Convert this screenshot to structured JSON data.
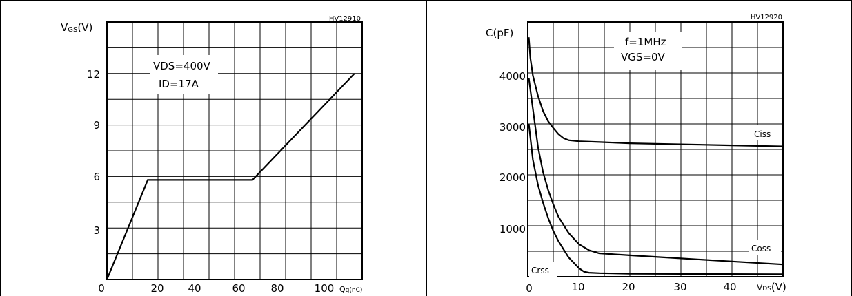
{
  "chart_data": [
    {
      "type": "line",
      "code": "HV12910",
      "ylabel": "VGS(V)",
      "xlabel": "Qg(nC)",
      "xlim": [
        0,
        100
      ],
      "ylim": [
        0,
        15
      ],
      "x_ticks": [
        "0",
        "20",
        "40",
        "60",
        "80",
        "100"
      ],
      "y_ticks": [
        "3",
        "6",
        "9",
        "12"
      ],
      "annotation": [
        "VDS=400V",
        "ID=17A"
      ],
      "series": [
        {
          "x": [
            0,
            16,
            57,
            97
          ],
          "y": [
            0,
            5.8,
            5.8,
            12
          ]
        }
      ]
    },
    {
      "type": "line",
      "code": "HV12920",
      "ylabel": "C(pF)",
      "xlabel": "VDS(V)",
      "xlim": [
        0,
        50
      ],
      "ylim": [
        0,
        5000
      ],
      "x_ticks": [
        "0",
        "10",
        "20",
        "30",
        "40"
      ],
      "y_ticks": [
        "1000",
        "2000",
        "3000",
        "4000"
      ],
      "annotation": [
        "f=1MHz",
        "VGS=0V"
      ],
      "series": [
        {
          "name": "Ciss",
          "x": [
            0.2,
            0.5,
            1,
            2,
            3,
            4,
            5,
            6,
            7,
            8,
            10,
            15,
            20,
            30,
            40,
            50
          ],
          "y": [
            4700,
            4300,
            3950,
            3550,
            3250,
            3050,
            2920,
            2800,
            2720,
            2680,
            2660,
            2640,
            2620,
            2600,
            2580,
            2560
          ]
        },
        {
          "name": "Coss",
          "x": [
            0.2,
            1,
            2,
            3,
            4,
            5,
            6,
            8,
            10,
            12,
            14,
            20,
            30,
            40,
            50
          ],
          "y": [
            3900,
            3300,
            2550,
            2050,
            1700,
            1420,
            1180,
            860,
            640,
            520,
            460,
            420,
            360,
            300,
            240
          ]
        },
        {
          "name": "Crss",
          "x": [
            0.2,
            1,
            2,
            3,
            4,
            5,
            6,
            8,
            10,
            11,
            12,
            14,
            20,
            30,
            50
          ],
          "y": [
            3000,
            2300,
            1800,
            1450,
            1150,
            900,
            700,
            380,
            170,
            100,
            80,
            70,
            60,
            55,
            50
          ]
        }
      ]
    }
  ]
}
